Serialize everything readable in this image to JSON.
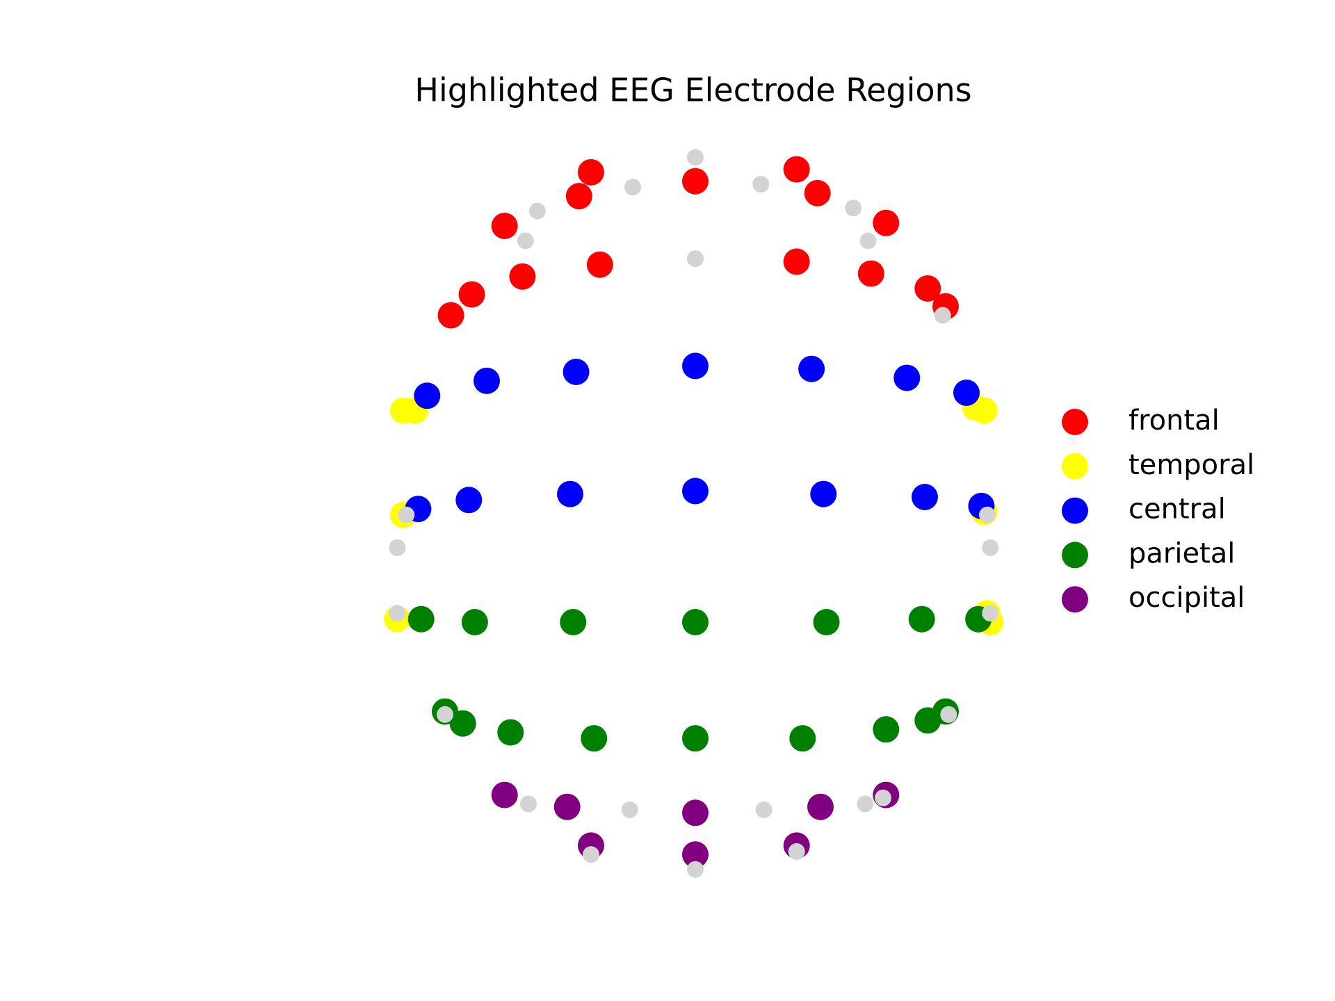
{
  "chart_data": {
    "type": "scatter",
    "title": "Highlighted EEG Electrode Regions",
    "xlim": [
      -1.4,
      1.4
    ],
    "ylim": [
      -1.4,
      1.4
    ],
    "legend": "right",
    "series": [
      {
        "name": "frontal",
        "color": "#ff0000",
        "x": [
          -0.35,
          -0.39,
          -0.64,
          -0.75,
          -0.82,
          -0.58,
          -0.32,
          0,
          0.34,
          0.41,
          0.64,
          0.34,
          0.59,
          0.78,
          0.84
        ],
        "values": [
          1.16,
          1.08,
          0.98,
          0.75,
          0.68,
          0.81,
          0.85,
          1.13,
          1.17,
          1.09,
          0.99,
          0.86,
          0.82,
          0.77,
          0.71
        ]
      },
      {
        "name": "temporal",
        "color": "#ffff00",
        "x": [
          -0.98,
          -0.94,
          -0.98,
          -1.0,
          0.94,
          0.97,
          0.97,
          0.99,
          0.98
        ],
        "values": [
          0.36,
          0.36,
          0.01,
          -0.34,
          0.37,
          0.36,
          0.02,
          -0.35,
          -0.32
        ]
      },
      {
        "name": "central",
        "color": "#0000ff",
        "x": [
          -0.9,
          -0.7,
          -0.4,
          0,
          0.39,
          0.71,
          0.91,
          -0.93,
          -0.76,
          -0.42,
          0,
          0.43,
          0.77,
          0.96
        ],
        "values": [
          0.41,
          0.46,
          0.49,
          0.51,
          0.5,
          0.47,
          0.42,
          0.03,
          0.06,
          0.08,
          0.09,
          0.08,
          0.07,
          0.04
        ]
      },
      {
        "name": "parietal",
        "color": "#008000",
        "x": [
          -0.92,
          -0.74,
          -0.41,
          0,
          0.44,
          0.76,
          0.95,
          -0.84,
          -0.78,
          -0.62,
          -0.34,
          0,
          0.36,
          0.64,
          0.78,
          0.84
        ],
        "values": [
          -0.34,
          -0.35,
          -0.35,
          -0.35,
          -0.35,
          -0.34,
          -0.34,
          -0.65,
          -0.69,
          -0.72,
          -0.74,
          -0.74,
          -0.74,
          -0.71,
          -0.68,
          -0.65
        ]
      },
      {
        "name": "occipital",
        "color": "#800080",
        "x": [
          -0.64,
          -0.43,
          0,
          0.42,
          0.64,
          -0.35,
          0,
          0.34
        ],
        "values": [
          -0.93,
          -0.97,
          -0.99,
          -0.97,
          -0.93,
          -1.1,
          -1.13,
          -1.1
        ]
      },
      {
        "color": "#d3d3d3",
        "x": [
          0,
          -0.21,
          0.22,
          -0.53,
          0.53,
          -0.57,
          0.58,
          0,
          0.83,
          -0.97,
          -1.0,
          0.98,
          0.99,
          -1.0,
          0.99,
          -0.84,
          0.85,
          -0.56,
          0.57,
          -0.22,
          0.23,
          0.63,
          -0.35,
          0.34,
          0
        ],
        "values": [
          1.21,
          1.11,
          1.12,
          1.03,
          1.04,
          0.93,
          0.93,
          0.87,
          0.68,
          0.01,
          -0.1,
          0.01,
          -0.1,
          -0.32,
          -0.32,
          -0.66,
          -0.66,
          -0.96,
          -0.96,
          -0.98,
          -0.98,
          -0.94,
          -1.13,
          -1.12,
          -1.18
        ]
      }
    ]
  }
}
